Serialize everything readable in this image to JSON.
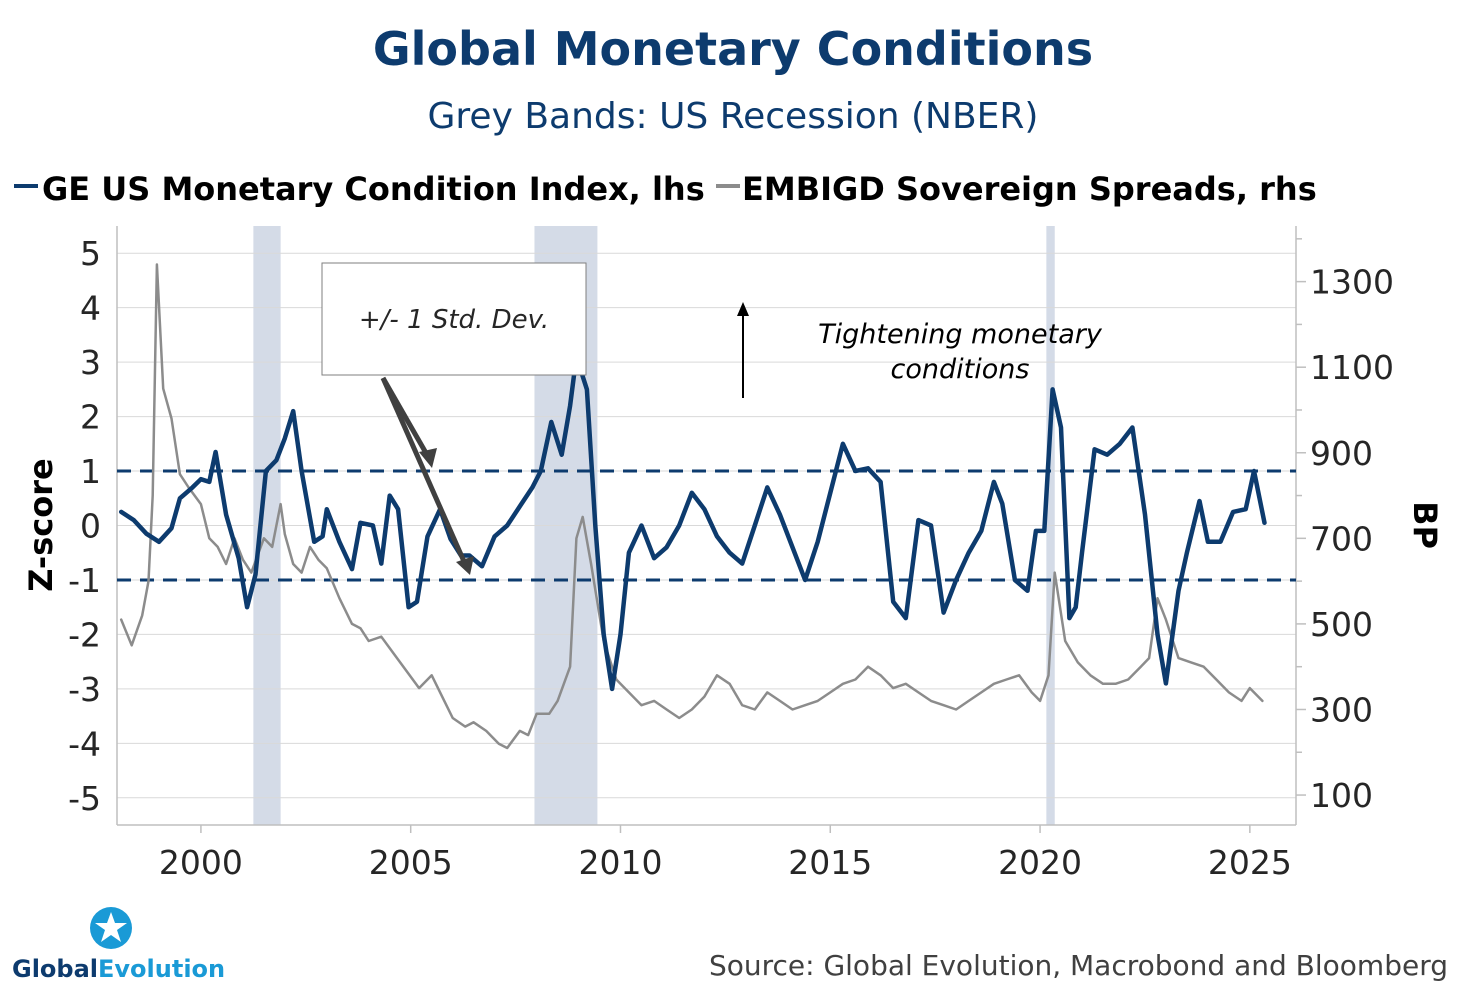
{
  "chart_data": {
    "type": "line",
    "title": "Global Monetary Conditions",
    "subtitle": "Grey Bands: US Recession (NBER)",
    "ylabel_left": "Z-score",
    "ylabel_right": "BP",
    "ylim_left": [
      -5.5,
      5.5
    ],
    "ylim_right": [
      30,
      1430
    ],
    "yticks_left": [
      "5",
      "4",
      "3",
      "2",
      "1",
      "0",
      "-1",
      "-2",
      "-3",
      "-4",
      "-5"
    ],
    "yticks_left_values": [
      5,
      4,
      3,
      2,
      1,
      0,
      -1,
      -2,
      -3,
      -4,
      -5
    ],
    "yticks_right": [
      "1300",
      "1100",
      "900",
      "700",
      "500",
      "300",
      "100"
    ],
    "yticks_right_values": [
      1300,
      1100,
      900,
      700,
      500,
      300,
      100
    ],
    "xlim": [
      1998.0,
      2026.1
    ],
    "xticks": [
      "2000",
      "2005",
      "2010",
      "2015",
      "2020",
      "2025"
    ],
    "xticks_values": [
      2000,
      2005,
      2010,
      2015,
      2020,
      2025
    ],
    "recession_bands": [
      [
        2001.25,
        2001.9
      ],
      [
        2007.95,
        2009.45
      ],
      [
        2020.15,
        2020.35
      ]
    ],
    "std_dev_lines": [
      1,
      -1
    ],
    "series": [
      {
        "name": "GE US Monetary Condition Index, lhs",
        "axis": "left",
        "color": "#0d3b6e",
        "x": [
          1998.1,
          1998.4,
          1998.7,
          1999.0,
          1999.3,
          1999.5,
          1999.8,
          2000.0,
          2000.2,
          2000.35,
          2000.6,
          2000.9,
          2001.1,
          2001.3,
          2001.55,
          2001.8,
          2002.0,
          2002.2,
          2002.4,
          2002.7,
          2002.9,
          2003.0,
          2003.3,
          2003.6,
          2003.8,
          2004.1,
          2004.3,
          2004.5,
          2004.7,
          2004.95,
          2005.15,
          2005.4,
          2005.7,
          2005.95,
          2006.2,
          2006.4,
          2006.7,
          2007.0,
          2007.3,
          2007.6,
          2007.9,
          2008.1,
          2008.35,
          2008.6,
          2008.8,
          2008.95,
          2009.2,
          2009.4,
          2009.6,
          2009.8,
          2010.0,
          2010.2,
          2010.5,
          2010.8,
          2011.1,
          2011.4,
          2011.7,
          2012.0,
          2012.3,
          2012.6,
          2012.9,
          2013.2,
          2013.5,
          2013.8,
          2014.1,
          2014.4,
          2014.7,
          2015.0,
          2015.3,
          2015.6,
          2015.9,
          2016.2,
          2016.5,
          2016.8,
          2017.1,
          2017.4,
          2017.7,
          2018.0,
          2018.3,
          2018.6,
          2018.9,
          2019.1,
          2019.4,
          2019.7,
          2019.9,
          2020.1,
          2020.3,
          2020.5,
          2020.7,
          2020.85,
          2021.0,
          2021.3,
          2021.6,
          2021.9,
          2022.2,
          2022.5,
          2022.8,
          2023.0,
          2023.3,
          2023.5,
          2023.8,
          2024.0,
          2024.3,
          2024.6,
          2024.9,
          2025.1,
          2025.35
        ],
        "y": [
          0.25,
          0.1,
          -0.15,
          -0.3,
          -0.05,
          0.5,
          0.7,
          0.85,
          0.8,
          1.35,
          0.2,
          -0.6,
          -1.5,
          -0.9,
          1.0,
          1.2,
          1.6,
          2.1,
          1.0,
          -0.3,
          -0.2,
          0.3,
          -0.3,
          -0.8,
          0.05,
          0.0,
          -0.7,
          0.55,
          0.3,
          -1.5,
          -1.4,
          -0.2,
          0.3,
          -0.25,
          -0.55,
          -0.55,
          -0.75,
          -0.2,
          0.0,
          0.35,
          0.7,
          1.0,
          1.9,
          1.3,
          2.2,
          3.1,
          2.5,
          0.0,
          -2.0,
          -3.0,
          -2.0,
          -0.5,
          0.0,
          -0.6,
          -0.4,
          0.0,
          0.6,
          0.3,
          -0.2,
          -0.5,
          -0.7,
          0.0,
          0.7,
          0.2,
          -0.4,
          -1.0,
          -0.3,
          0.6,
          1.5,
          1.0,
          1.05,
          0.8,
          -1.4,
          -1.7,
          0.1,
          0.0,
          -1.6,
          -1.0,
          -0.5,
          -0.1,
          0.8,
          0.4,
          -1.0,
          -1.2,
          -0.1,
          -0.1,
          2.5,
          1.8,
          -1.7,
          -1.5,
          -0.5,
          1.4,
          1.3,
          1.5,
          1.8,
          0.2,
          -2.0,
          -2.9,
          -1.2,
          -0.5,
          0.45,
          -0.3,
          -0.3,
          0.25,
          0.3,
          1.0,
          0.05
        ]
      },
      {
        "name": "EMBIGD Sovereign Spreads, rhs",
        "axis": "right",
        "color": "#8c8c8c",
        "x": [
          1998.1,
          1998.35,
          1998.6,
          1998.75,
          1998.85,
          1998.95,
          1999.1,
          1999.3,
          1999.5,
          1999.7,
          2000.0,
          2000.2,
          2000.4,
          2000.6,
          2000.8,
          2001.0,
          2001.2,
          2001.5,
          2001.7,
          2001.9,
          2002.0,
          2002.2,
          2002.4,
          2002.6,
          2002.8,
          2003.0,
          2003.3,
          2003.6,
          2003.8,
          2004.0,
          2004.3,
          2004.6,
          2004.9,
          2005.2,
          2005.5,
          2005.8,
          2006.0,
          2006.3,
          2006.5,
          2006.8,
          2007.1,
          2007.3,
          2007.6,
          2007.8,
          2008.0,
          2008.3,
          2008.5,
          2008.8,
          2008.95,
          2009.1,
          2009.3,
          2009.6,
          2009.9,
          2010.2,
          2010.5,
          2010.8,
          2011.1,
          2011.4,
          2011.7,
          2012.0,
          2012.3,
          2012.6,
          2012.9,
          2013.2,
          2013.5,
          2013.8,
          2014.1,
          2014.4,
          2014.7,
          2015.0,
          2015.3,
          2015.6,
          2015.9,
          2016.2,
          2016.5,
          2016.8,
          2017.1,
          2017.4,
          2017.7,
          2018.0,
          2018.3,
          2018.6,
          2018.9,
          2019.2,
          2019.5,
          2019.8,
          2020.0,
          2020.2,
          2020.35,
          2020.6,
          2020.9,
          2021.2,
          2021.5,
          2021.8,
          2022.1,
          2022.4,
          2022.6,
          2022.8,
          2023.0,
          2023.3,
          2023.6,
          2023.9,
          2024.2,
          2024.5,
          2024.8,
          2025.0,
          2025.3
        ],
        "y": [
          510,
          450,
          520,
          600,
          800,
          1340,
          1050,
          980,
          850,
          820,
          780,
          700,
          680,
          640,
          700,
          650,
          620,
          700,
          680,
          780,
          710,
          640,
          620,
          680,
          650,
          630,
          560,
          500,
          490,
          460,
          470,
          430,
          390,
          350,
          380,
          320,
          280,
          260,
          270,
          250,
          220,
          210,
          250,
          240,
          290,
          290,
          320,
          400,
          700,
          750,
          640,
          460,
          370,
          340,
          310,
          320,
          300,
          280,
          300,
          330,
          380,
          360,
          310,
          300,
          340,
          320,
          300,
          310,
          320,
          340,
          360,
          370,
          400,
          380,
          350,
          360,
          340,
          320,
          310,
          300,
          320,
          340,
          360,
          370,
          380,
          340,
          320,
          380,
          620,
          460,
          410,
          380,
          360,
          360,
          370,
          400,
          420,
          560,
          510,
          420,
          410,
          400,
          370,
          340,
          320,
          350,
          320
        ]
      }
    ],
    "annotations": {
      "std_dev": "+/- 1 Std. Dev.",
      "tightening_line1": "Tightening monetary",
      "tightening_line2": "conditions"
    }
  },
  "legend": {
    "item1": "GE US Monetary Condition Index, lhs",
    "item2": "EMBIGD Sovereign Spreads, rhs"
  },
  "source": "Source: Global Evolution, Macrobond and Bloomberg",
  "logo": {
    "text_part1": "Global",
    "text_part2": "Evolution"
  },
  "colors": {
    "title": "#0d3b6e",
    "index_line": "#0d3b6e",
    "spread_line": "#8c8c8c",
    "recession_band": "#d4dbe7",
    "grid": "#d9d9d9",
    "logo_green": "#1a9ad6"
  }
}
